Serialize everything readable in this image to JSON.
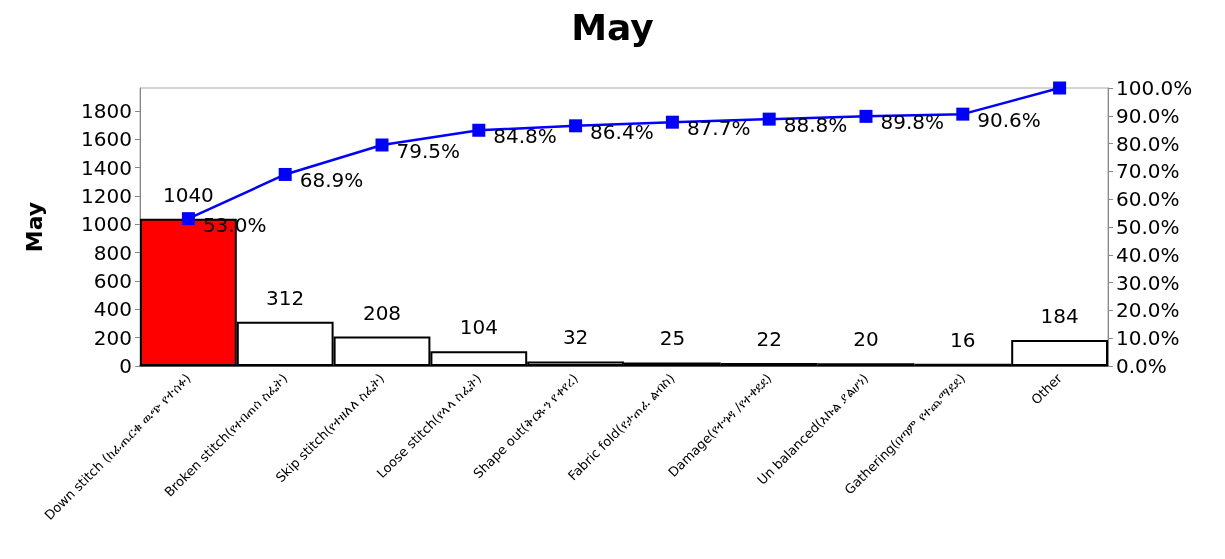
{
  "chart_data": {
    "type": "bar",
    "title": "May",
    "ylabel": "May",
    "categories": [
      "Down stitch (ከፊጤርቁ ዉጭ የተሰፉ)",
      "Broken stitch(የተበጠሰ ስፌት)",
      "Skip stitch(የተዘለለ ስፌት)",
      "Loose stitch(የላላ ስፌት)",
      "Shape out(ቅርጹን የቀየረ)",
      "Fabric fold(የታጠፈ ልብስ)",
      "Damage(የተጎዳ /የተቀደደ)",
      "Un balanced(እኩል ያልሆነ)",
      "Gathering(በጣም የተጨማደደ)",
      "Other"
    ],
    "series": [
      {
        "values": [
          1040,
          312,
          208,
          104,
          32,
          25,
          22,
          20,
          16,
          184
        ],
        "colors": [
          "#ff0000",
          "#ffffff",
          "#ffffff",
          "#ffffff",
          "#ffffff",
          "#ffffff",
          "#ffffff",
          "#ffffff",
          "#ffffff",
          "#ffffff"
        ],
        "data_labels": true
      },
      {
        "type": "line",
        "axis": "y2",
        "color": "#0000ff",
        "marker": "square",
        "values": [
          53.0,
          68.9,
          79.5,
          84.8,
          86.4,
          87.7,
          88.8,
          89.8,
          90.6,
          100
        ],
        "value_labels": [
          "53.0%",
          "68.9%",
          "79.5%",
          "84.8%",
          "86.4%",
          "87.7%",
          "88.8%",
          "89.8%",
          "90.6%",
          null
        ]
      }
    ],
    "ylim": [
      0,
      1963
    ],
    "yticks": [
      0,
      200,
      400,
      600,
      800,
      1000,
      1200,
      1400,
      1600,
      1800
    ],
    "y2lim": [
      0,
      100
    ],
    "y2ticks": [
      {
        "value": 0,
        "label": "0.0%"
      },
      {
        "value": 10,
        "label": "10.0%"
      },
      {
        "value": 20,
        "label": "20.0%"
      },
      {
        "value": 30,
        "label": "30.0%"
      },
      {
        "value": 40,
        "label": "40.0%"
      },
      {
        "value": 50,
        "label": "50.0%"
      },
      {
        "value": 60,
        "label": "60.0%"
      },
      {
        "value": 70,
        "label": "70.0%"
      },
      {
        "value": 80,
        "label": "80.0%"
      },
      {
        "value": 90,
        "label": "90.0%"
      },
      {
        "value": 100,
        "label": "100.0%"
      }
    ],
    "grid": false
  }
}
